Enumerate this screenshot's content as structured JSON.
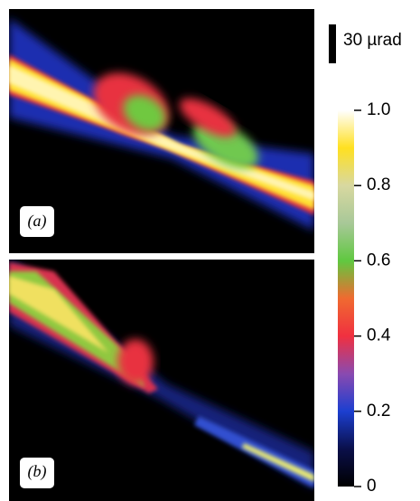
{
  "panels": [
    {
      "label": "(a)"
    },
    {
      "label": "(b)"
    }
  ],
  "scale_bar": {
    "label": "30 µrad"
  },
  "chart_data": {
    "type": "colorbar",
    "ylim": [
      0,
      1
    ],
    "yticks": [
      0,
      0.2,
      0.4,
      0.6,
      0.8,
      {
        "value": 1,
        "label": "1.0"
      }
    ]
  }
}
